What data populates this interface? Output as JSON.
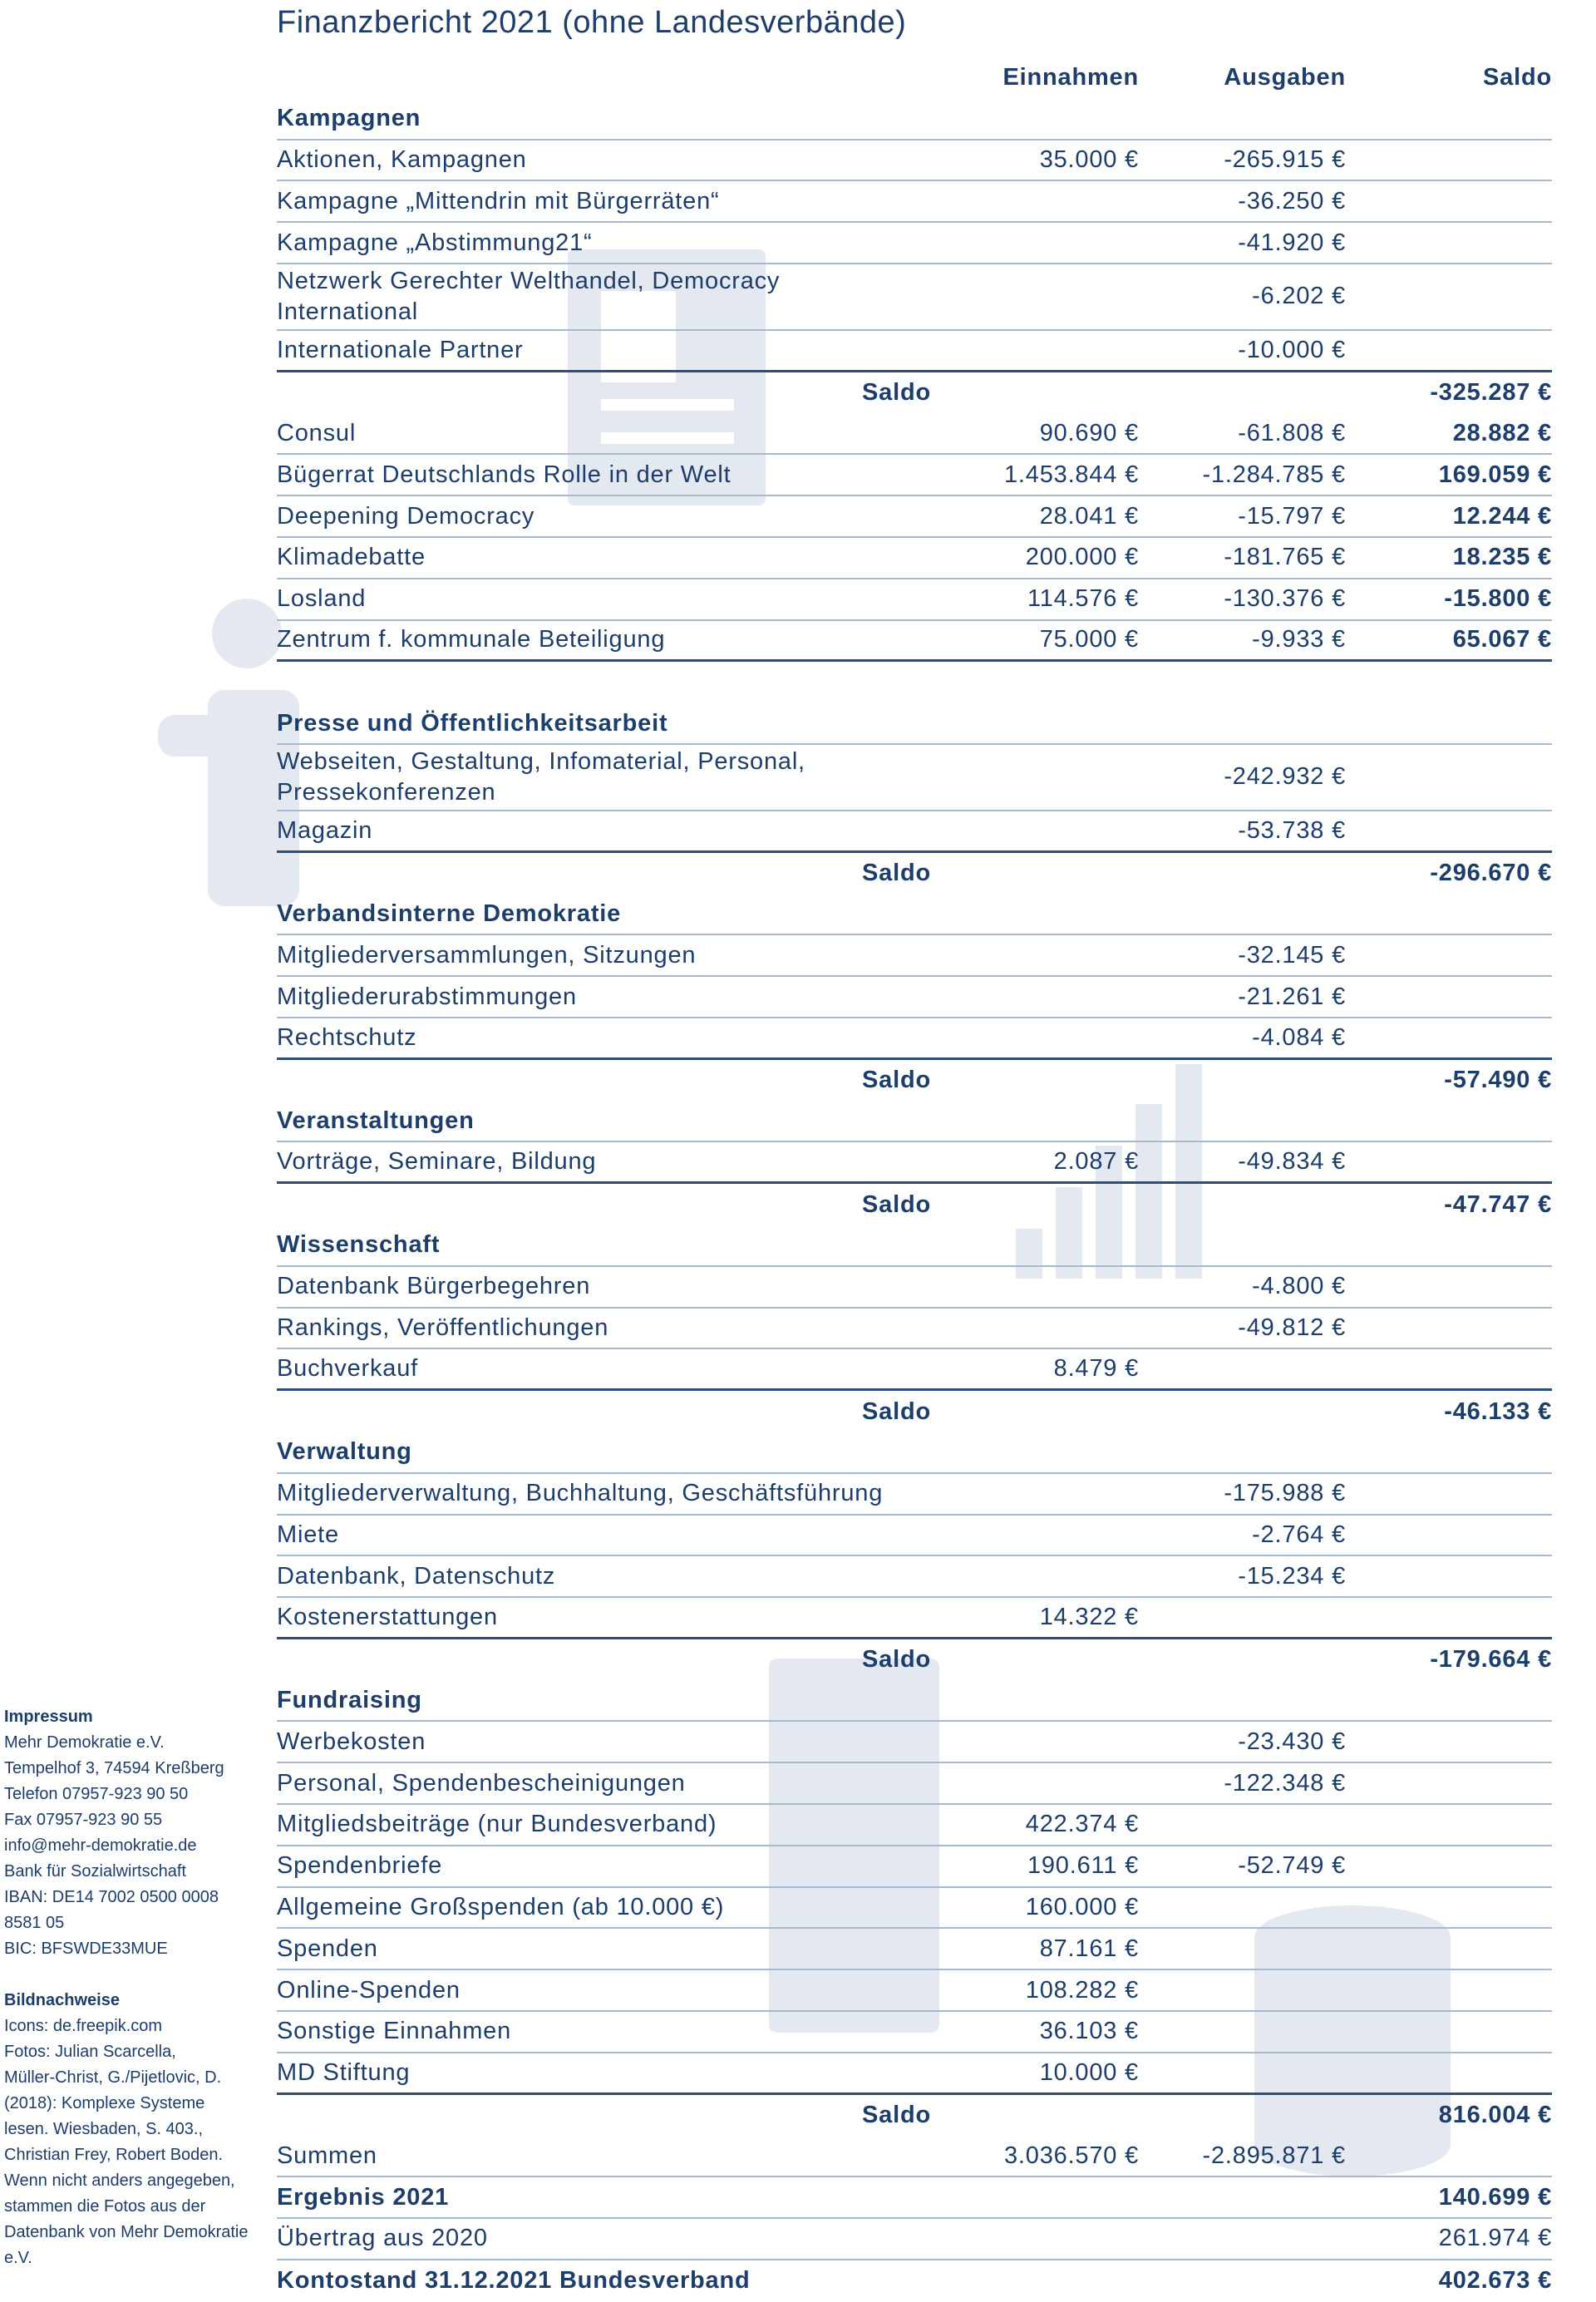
{
  "title": "Finanzbericht 2021 (ohne Landesverbände)",
  "columns": [
    "Einnahmen",
    "Ausgaben",
    "Saldo"
  ],
  "sections": [
    {
      "heading": "Kampagnen",
      "rows": [
        {
          "label": "Aktionen, Kampagnen",
          "income": "35.000 €",
          "expenses": "-265.915 €"
        },
        {
          "label": "Kampagne „Mittendrin mit Bürgerräten“",
          "expenses": "-36.250 €"
        },
        {
          "label": "Kampagne „Abstimmung21“",
          "expenses": "-41.920 €"
        },
        {
          "label": "Netzwerk Gerechter Welthandel, Democracy International",
          "expenses": "-6.202 €"
        },
        {
          "label": "Internationale Partner",
          "expenses": "-10.000 €"
        }
      ],
      "saldo": {
        "label": "Saldo",
        "value": "-325.287 €"
      }
    },
    {
      "rows": [
        {
          "label": "Consul",
          "income": "90.690 €",
          "expenses": "-61.808 €",
          "balance": "28.882 €"
        },
        {
          "label": "Bügerrat Deutschlands Rolle in der Welt",
          "income": "1.453.844 €",
          "expenses": "-1.284.785 €",
          "balance": "169.059 €"
        },
        {
          "label": "Deepening Democracy",
          "income": "28.041 €",
          "expenses": "-15.797 €",
          "balance": "12.244 €"
        },
        {
          "label": "Klimadebatte",
          "income": "200.000 €",
          "expenses": "-181.765 €",
          "balance": "18.235 €"
        },
        {
          "label": "Losland",
          "income": "114.576 €",
          "expenses": "-130.376 €",
          "balance": "-15.800 €"
        },
        {
          "label": "Zentrum f. kommunale Beteiligung",
          "income": "75.000 €",
          "expenses": "-9.933 €",
          "balance": "65.067 €"
        }
      ]
    },
    {
      "heading": "Presse und Öffentlichkeitsarbeit",
      "rows": [
        {
          "label": "Webseiten, Gestaltung, Infomaterial, Personal, Pressekon­ferenzen",
          "expenses": "-242.932 €"
        },
        {
          "label": "Magazin",
          "expenses": "-53.738 €"
        }
      ],
      "saldo": {
        "label": "Saldo",
        "value": "-296.670 €"
      }
    },
    {
      "heading": "Verbandsinterne Demokratie",
      "rows": [
        {
          "label": "Mitgliederversammlungen, Sitzungen",
          "expenses": "-32.145 €"
        },
        {
          "label": "Mitgliederurabstimmungen",
          "expenses": "-21.261 €"
        },
        {
          "label": "Rechtschutz",
          "expenses": "-4.084 €"
        }
      ],
      "saldo": {
        "label": "Saldo",
        "value": "-57.490 €"
      }
    },
    {
      "heading": "Veranstaltungen",
      "rows": [
        {
          "label": "Vorträge, Seminare, Bildung",
          "income": "2.087 €",
          "expenses": "-49.834 €"
        }
      ],
      "saldo": {
        "label": "Saldo",
        "value": "-47.747 €"
      }
    },
    {
      "heading": "Wissenschaft",
      "rows": [
        {
          "label": "Datenbank Bürgerbegehren",
          "expenses": "-4.800 €"
        },
        {
          "label": "Rankings, Veröffentlichungen",
          "expenses": "-49.812 €"
        },
        {
          "label": "Buchverkauf",
          "income": "8.479 €"
        }
      ],
      "saldo": {
        "label": "Saldo",
        "value": "-46.133 €"
      }
    },
    {
      "heading": "Verwaltung",
      "rows": [
        {
          "label": "Mitgliederverwaltung, Buchhaltung, Geschäftsführung",
          "expenses": "-175.988 €"
        },
        {
          "label": "Miete",
          "expenses": "-2.764 €"
        },
        {
          "label": "Datenbank, Datenschutz",
          "expenses": "-15.234 €"
        },
        {
          "label": "Kostenerstattungen",
          "income": "14.322 €"
        }
      ],
      "saldo": {
        "label": "Saldo",
        "value": "-179.664 €"
      }
    },
    {
      "heading": "Fundraising",
      "rows": [
        {
          "label": "Werbekosten",
          "expenses": "-23.430 €"
        },
        {
          "label": "Personal, Spendenbescheinigungen",
          "expenses": "-122.348 €"
        },
        {
          "label": "Mitgliedsbeiträge (nur Bundesverband)",
          "income": "422.374 €"
        },
        {
          "label": "Spendenbriefe",
          "income": "190.611 €",
          "expenses": "-52.749 €"
        },
        {
          "label": "Allgemeine Großspenden (ab 10.000 €)",
          "income": "160.000 €"
        },
        {
          "label": "Spenden",
          "income": "87.161 €"
        },
        {
          "label": "Online-Spenden",
          "income": "108.282 €"
        },
        {
          "label": "Sonstige Einnahmen",
          "income": "36.103 €"
        },
        {
          "label": "MD Stiftung",
          "income": "10.000 €"
        }
      ],
      "saldo": {
        "label": "Saldo",
        "value": "816.004 €"
      }
    }
  ],
  "totals": [
    {
      "label": "Summen",
      "income": "3.036.570 €",
      "expenses": "-2.895.871 €"
    },
    {
      "label": "Ergebnis 2021",
      "balance": "140.699 €"
    },
    {
      "label": "Übertrag aus 2020",
      "balance": "261.974 €"
    },
    {
      "label": "Kontostand 31.12.2021 Bundesverband",
      "balance": "402.673 €"
    }
  ],
  "sidebar": {
    "impressum": {
      "heading": "Impressum",
      "lines": [
        "Mehr Demokratie e.V.",
        "Tempelhof 3, 74594 Kreßberg",
        "Telefon 07957-923 90 50",
        "Fax 07957-923 90 55",
        "info@mehr-demokratie.de",
        "Bank für Sozialwirtschaft",
        "IBAN: DE14 7002 0500 0008",
        "8581 05",
        "BIC: BFSWDE33MUE"
      ]
    },
    "credits": {
      "heading": "Bildnachweise",
      "lines": [
        "Icons: de.freepik.com",
        "Fotos: Julian Scarcella,",
        "Müller-Christ, G./Pijetlovic, D.",
        "(2018): Komplexe Systeme",
        "lesen. Wiesbaden, S. 403.,",
        "Christian Frey, Robert Boden.",
        "Wenn nicht anders angegeben,",
        "stammen die Fotos aus der",
        "Datenbank von Mehr Demokratie",
        "e.V."
      ]
    }
  }
}
